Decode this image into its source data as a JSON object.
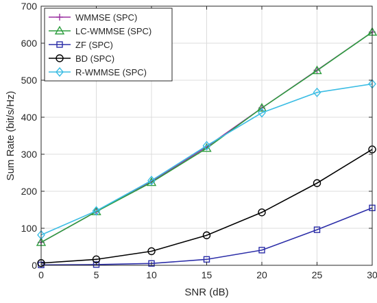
{
  "chart_data": {
    "type": "line",
    "title": "",
    "xlabel": "SNR (dB)",
    "ylabel": "Sum Rate (bit/s/Hz)",
    "xlim": [
      0,
      30
    ],
    "ylim": [
      0,
      700
    ],
    "xticks": [
      0,
      5,
      10,
      15,
      20,
      25,
      30
    ],
    "yticks": [
      0,
      100,
      200,
      300,
      400,
      500,
      600,
      700
    ],
    "grid": true,
    "legend_position": "top-left",
    "x": [
      0,
      5,
      10,
      15,
      20,
      25,
      30
    ],
    "series": [
      {
        "name": "WMMSE (SPC)",
        "color": "#9a2fa0",
        "marker": "plus",
        "values": [
          62,
          145,
          226,
          320,
          425,
          527,
          630
        ]
      },
      {
        "name": "LC-WMMSE (SPC)",
        "color": "#2e9e3f",
        "marker": "triangle",
        "values": [
          62,
          145,
          224,
          316,
          425,
          526,
          630
        ]
      },
      {
        "name": "ZF (SPC)",
        "color": "#2c2ea8",
        "marker": "square",
        "values": [
          1,
          2,
          5,
          16,
          41,
          96,
          155
        ]
      },
      {
        "name": "BD (SPC)",
        "color": "#000000",
        "marker": "circle",
        "values": [
          6,
          16,
          38,
          81,
          143,
          222,
          313
        ]
      },
      {
        "name": "R-WMMSE (SPC)",
        "color": "#3cbde4",
        "marker": "diamond",
        "values": [
          82,
          147,
          229,
          323,
          412,
          467,
          490
        ]
      }
    ]
  }
}
